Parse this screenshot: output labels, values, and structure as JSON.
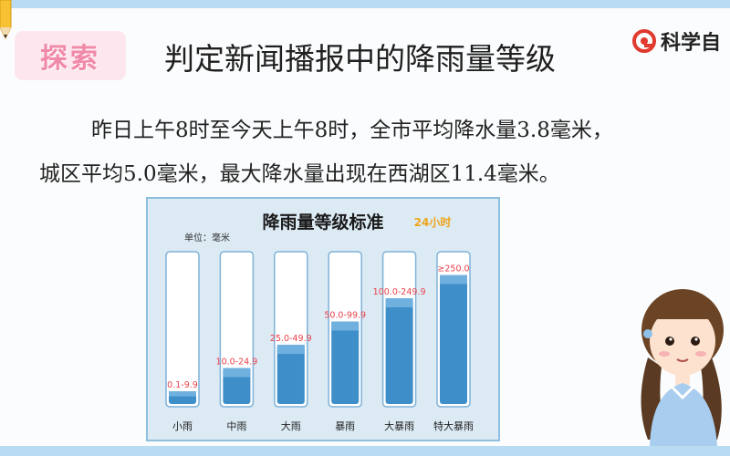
{
  "badge": {
    "label": "探索"
  },
  "header": {
    "title": "判定新闻播报中的降雨量等级",
    "brand": "科学自"
  },
  "content": {
    "line1": "昨日上午8时至今天上午8时，全市平均降水量3.8毫米，",
    "line2": "城区平均5.0毫米，最大降水量出现在西湖区11.4毫米。"
  },
  "chart_data": {
    "type": "bar",
    "title": "降雨量等级标准",
    "subtitle": "24小时",
    "unit_note": "单位：毫米",
    "categories": [
      "小雨",
      "中雨",
      "大雨",
      "暴雨",
      "大暴雨",
      "特大暴雨"
    ],
    "ranges": [
      "0.1-9.9",
      "10.0-24.9",
      "25.0-49.9",
      "50.0-99.9",
      "100.0-249.9",
      "≥250.0"
    ],
    "fill_levels": [
      0.1,
      0.25,
      0.4,
      0.55,
      0.7,
      0.85
    ],
    "colors": {
      "water": "#3d8ec9",
      "water_top": "#6fb0de",
      "tube": "#ffffff",
      "label": "#e8414b",
      "accent": "#f0a419"
    }
  },
  "icons": {
    "pencil": "pencil-icon",
    "brand_logo": "brand-logo-icon",
    "girl": "girl-illustration"
  }
}
